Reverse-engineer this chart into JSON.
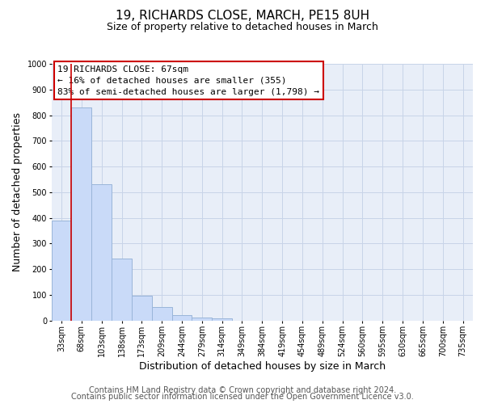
{
  "title": "19, RICHARDS CLOSE, MARCH, PE15 8UH",
  "subtitle": "Size of property relative to detached houses in March",
  "xlabel": "Distribution of detached houses by size in March",
  "ylabel": "Number of detached properties",
  "bar_labels": [
    "33sqm",
    "68sqm",
    "103sqm",
    "138sqm",
    "173sqm",
    "209sqm",
    "244sqm",
    "279sqm",
    "314sqm",
    "349sqm",
    "384sqm",
    "419sqm",
    "454sqm",
    "489sqm",
    "524sqm",
    "560sqm",
    "595sqm",
    "630sqm",
    "665sqm",
    "700sqm",
    "735sqm"
  ],
  "bar_values": [
    390,
    830,
    530,
    240,
    95,
    52,
    20,
    12,
    8,
    0,
    0,
    0,
    0,
    0,
    0,
    0,
    0,
    0,
    0,
    0,
    0
  ],
  "bar_color": "#c9daf8",
  "bar_edge_color": "#9ab5d9",
  "property_line_color": "#cc0000",
  "ylim": [
    0,
    1000
  ],
  "yticks": [
    0,
    100,
    200,
    300,
    400,
    500,
    600,
    700,
    800,
    900,
    1000
  ],
  "annotation_text_line1": "19 RICHARDS CLOSE: 67sqm",
  "annotation_text_line2": "← 16% of detached houses are smaller (355)",
  "annotation_text_line3": "83% of semi-detached houses are larger (1,798) →",
  "annotation_box_color": "#ffffff",
  "annotation_box_edge": "#cc0000",
  "footer_line1": "Contains HM Land Registry data © Crown copyright and database right 2024.",
  "footer_line2": "Contains public sector information licensed under the Open Government Licence v3.0.",
  "background_color": "#ffffff",
  "plot_bg_color": "#e8eef8",
  "grid_color": "#c8d4e8",
  "title_fontsize": 11,
  "subtitle_fontsize": 9,
  "axis_label_fontsize": 9,
  "tick_fontsize": 7,
  "annotation_fontsize": 8,
  "footer_fontsize": 7
}
